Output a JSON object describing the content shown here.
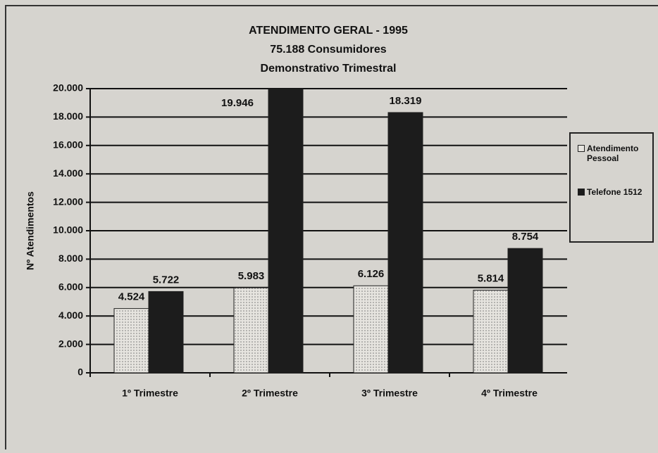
{
  "chart_data": {
    "type": "bar",
    "title": "ATENDIMENTO GERAL - 1995",
    "subtitle": [
      "75.188 Consumidores",
      "Demonstrativo Trimestral"
    ],
    "y_label": "Nº Atendimentos",
    "categories": [
      "1º Trimestre",
      "2º Trimestre",
      "3º Trimestre",
      "4º Trimestre"
    ],
    "series": [
      {
        "name": "Atendimento Pessoal",
        "color": "#e6e4df",
        "values": [
          4524,
          5983,
          6126,
          5814
        ],
        "value_labels": [
          "4.524",
          "5.983",
          "6.126",
          "5.814"
        ]
      },
      {
        "name": "Telefone 1512",
        "color": "#1c1c1c",
        "values": [
          5722,
          19946,
          18319,
          8754
        ],
        "value_labels": [
          "5.722",
          "19.946",
          "18.319",
          "8.754"
        ]
      }
    ],
    "ylim": [
      0,
      20000
    ],
    "yticks": [
      0,
      {
        "value": 2000,
        "label": "2.000"
      },
      {
        "value": 4000,
        "label": "4.000"
      },
      {
        "value": 6000,
        "label": "6.000"
      },
      {
        "value": 8000,
        "label": "8.000"
      },
      {
        "value": 10000,
        "label": "10.000"
      },
      {
        "value": 12000,
        "label": "12.000"
      },
      {
        "value": 14000,
        "label": "14.000"
      },
      {
        "value": 16000,
        "label": "16.000"
      },
      {
        "value": 18000,
        "label": "18.000"
      },
      {
        "value": 20000,
        "label": "20.000"
      }
    ],
    "grid": true,
    "legend": "right"
  }
}
